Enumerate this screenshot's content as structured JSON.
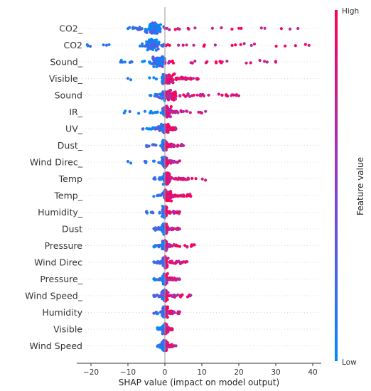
{
  "chart_data": {
    "type": "scatter",
    "subtype": "shap-beeswarm",
    "xlabel": "SHAP value (impact on model output)",
    "xlim": [
      -24,
      42
    ],
    "xticks": [
      -20,
      -10,
      0,
      10,
      20,
      30,
      40
    ],
    "colors": {
      "low": "#008bfb",
      "high": "#ff0052"
    },
    "colorbar": {
      "title": "Feature value",
      "high_label": "High",
      "low_label": "Low"
    },
    "features": [
      {
        "name": "CO2_",
        "min": -10,
        "max": 36,
        "core": [
          -6,
          0
        ]
      },
      {
        "name": "CO2",
        "min": -21,
        "max": 39,
        "core": [
          -6,
          -1
        ]
      },
      {
        "name": "Sound_",
        "min": -12,
        "max": 30,
        "core": [
          -4,
          1
        ]
      },
      {
        "name": "Visible_",
        "min": -10,
        "max": 9,
        "core": [
          -2,
          3
        ]
      },
      {
        "name": "Sound",
        "min": -4,
        "max": 20,
        "core": [
          -2,
          4
        ]
      },
      {
        "name": "IR_",
        "min": -11,
        "max": 11,
        "core": [
          -1,
          2
        ]
      },
      {
        "name": "UV_",
        "min": -6,
        "max": 3,
        "core": [
          -2,
          2
        ]
      },
      {
        "name": "Dust_",
        "min": -5,
        "max": 5,
        "core": [
          -1,
          1
        ]
      },
      {
        "name": "Wind Direc_",
        "min": -10,
        "max": 4,
        "core": [
          -1,
          1
        ]
      },
      {
        "name": "Temp",
        "min": -3,
        "max": 11,
        "core": [
          -1,
          2
        ]
      },
      {
        "name": "Temp_",
        "min": -3,
        "max": 7,
        "core": [
          -1,
          2
        ]
      },
      {
        "name": "Humidity_",
        "min": -5,
        "max": 4,
        "core": [
          -1,
          1
        ]
      },
      {
        "name": "Dust",
        "min": -3,
        "max": 4,
        "core": [
          -1,
          1
        ]
      },
      {
        "name": "Pressure",
        "min": -3,
        "max": 8,
        "core": [
          -1,
          1
        ]
      },
      {
        "name": "Wind Direc",
        "min": -3,
        "max": 6,
        "core": [
          -1,
          1
        ]
      },
      {
        "name": "Pressure_",
        "min": -3,
        "max": 4,
        "core": [
          -1,
          1
        ]
      },
      {
        "name": "Wind Speed_",
        "min": -3,
        "max": 7,
        "core": [
          -1,
          1
        ]
      },
      {
        "name": "Humidity",
        "min": -3,
        "max": 4,
        "core": [
          -1,
          1
        ]
      },
      {
        "name": "Visible",
        "min": -2,
        "max": 2,
        "core": [
          -1,
          1
        ]
      },
      {
        "name": "Wind Speed",
        "min": -2,
        "max": 3,
        "core": [
          -1,
          1
        ]
      }
    ]
  }
}
